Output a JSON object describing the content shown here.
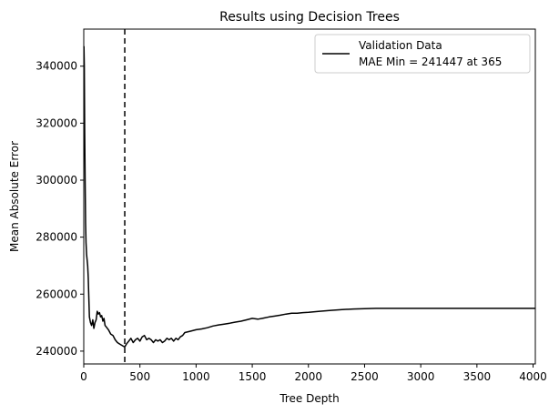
{
  "chart_data": {
    "type": "line",
    "title": "Results using Decision Trees",
    "xlabel": "Tree Depth",
    "ylabel": "Mean Absolute Error",
    "xlim": [
      0,
      4020
    ],
    "ylim": [
      235500,
      353000
    ],
    "xticks": [
      0,
      500,
      1000,
      1500,
      2000,
      2500,
      3000,
      3500,
      4000
    ],
    "yticks": [
      240000,
      260000,
      280000,
      300000,
      320000,
      340000
    ],
    "grid": false,
    "legend_position": "top-right",
    "series": [
      {
        "name": "Validation Data",
        "color": "#000000",
        "x": [
          2,
          5,
          8,
          12,
          16,
          20,
          25,
          30,
          35,
          40,
          50,
          60,
          70,
          80,
          90,
          100,
          110,
          120,
          130,
          140,
          150,
          160,
          170,
          180,
          190,
          200,
          220,
          240,
          260,
          280,
          300,
          320,
          340,
          365,
          380,
          400,
          420,
          440,
          460,
          480,
          500,
          520,
          540,
          560,
          580,
          600,
          620,
          640,
          660,
          680,
          700,
          720,
          740,
          760,
          780,
          800,
          820,
          840,
          860,
          880,
          900,
          950,
          1000,
          1050,
          1100,
          1150,
          1200,
          1250,
          1300,
          1350,
          1400,
          1450,
          1500,
          1550,
          1600,
          1650,
          1700,
          1750,
          1800,
          1850,
          1900,
          1950,
          2000,
          2100,
          2200,
          2300,
          2400,
          2500,
          2600,
          2700,
          2800,
          2900,
          3000,
          3200,
          3400,
          3600,
          3800,
          4000,
          4020
        ],
        "values": [
          347000,
          340000,
          318000,
          300000,
          285000,
          278000,
          274000,
          272000,
          270000,
          266000,
          252000,
          250000,
          249000,
          251000,
          248000,
          250000,
          251000,
          254000,
          253000,
          253500,
          252000,
          252500,
          250500,
          251500,
          249000,
          248500,
          247500,
          246000,
          245500,
          244000,
          243000,
          242500,
          242000,
          241447,
          242500,
          243500,
          244500,
          243000,
          244000,
          244500,
          243500,
          245000,
          245500,
          244000,
          244500,
          244000,
          243000,
          244000,
          243500,
          244000,
          243000,
          243500,
          244500,
          244000,
          244500,
          243500,
          244500,
          244000,
          245000,
          245500,
          246500,
          247000,
          247500,
          247800,
          248200,
          248800,
          249200,
          249500,
          249800,
          250200,
          250500,
          251000,
          251500,
          251200,
          251600,
          252000,
          252300,
          252600,
          253000,
          253300,
          253300,
          253500,
          253600,
          254000,
          254300,
          254600,
          254800,
          254900,
          255000,
          255000,
          255000,
          255000,
          255000,
          255000,
          255000,
          255000,
          255000,
          255000,
          255000
        ]
      }
    ],
    "annotations": [
      {
        "type": "vline",
        "x": 365,
        "style": "dashed",
        "color": "#000000"
      }
    ],
    "legend": {
      "label_line1": "Validation Data",
      "label_line2": "MAE Min = 241447 at 365"
    }
  }
}
